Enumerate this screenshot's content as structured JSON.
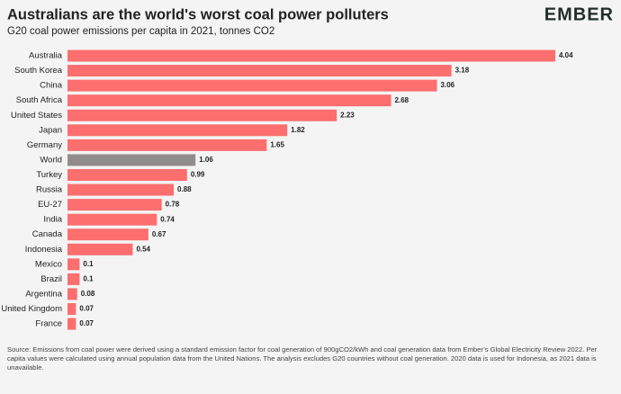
{
  "chart_data": {
    "type": "bar",
    "orientation": "horizontal",
    "title": "Australians are the world's worst coal power polluters",
    "subtitle": "G20 coal power emissions per capita in 2021, tonnes CO2",
    "logo": "EMBER",
    "categories": [
      "Australia",
      "South Korea",
      "China",
      "South Africa",
      "United States",
      "Japan",
      "Germany",
      "World",
      "Turkey",
      "Russia",
      "EU-27",
      "India",
      "Canada",
      "Indonesia",
      "Mexico",
      "Brazil",
      "Argentina",
      "United Kingdom",
      "France"
    ],
    "values": [
      4.04,
      3.18,
      3.06,
      2.68,
      2.23,
      1.82,
      1.65,
      1.06,
      0.99,
      0.88,
      0.78,
      0.74,
      0.67,
      0.54,
      0.1,
      0.1,
      0.08,
      0.07,
      0.07
    ],
    "colors": [
      "#fd6e6e",
      "#fd6e6e",
      "#fd6e6e",
      "#fd6e6e",
      "#fd6e6e",
      "#fd6e6e",
      "#fd6e6e",
      "#928d8d",
      "#fd6e6e",
      "#fd6e6e",
      "#fd6e6e",
      "#fd6e6e",
      "#fd6e6e",
      "#fd6e6e",
      "#fd6e6e",
      "#fd6e6e",
      "#fd6e6e",
      "#fd6e6e",
      "#fd6e6e"
    ],
    "source": "Source: Emissions from coal power were derived using a standard emission factor for coal generation of 900gCO2/kWh and coal generation data from Ember’s Global Electricity Review 2022. Per capita values were calculated using annual population data from the United Nations. The analysis excludes G20 countries without coal generation. 2020 data is used for Indonesia, as 2021 data is unavailable."
  }
}
